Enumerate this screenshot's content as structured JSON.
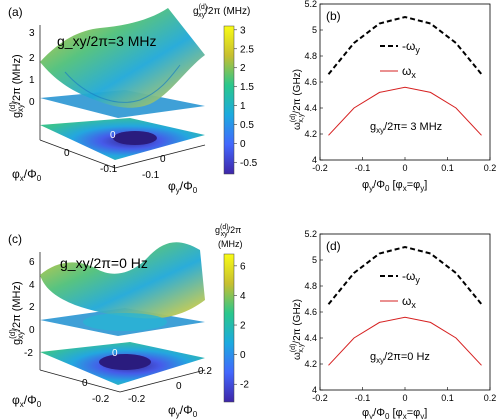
{
  "chart_data": [
    {
      "panel": "(a)",
      "type": "surface3d",
      "annotation": "g_xy/2π=3 MHz",
      "zlabel_main": "g",
      "zlabel_sup": "(d)",
      "zlabel_sub": "xy",
      "zlabel_rest": "/2π (MHz)",
      "z_ticks": [
        "3",
        "2",
        "1",
        "0"
      ],
      "x_ticks": [
        "0",
        "-0.1"
      ],
      "y_ticks": [
        "0",
        "-0.1"
      ],
      "xlabel_main": "φ",
      "xlabel_sub": "x",
      "xlabel_rest": "/Φ",
      "xlabel_sub2": "0",
      "ylabel_main": "φ",
      "ylabel_sub": "y",
      "ylabel_rest": "/Φ",
      "ylabel_sub2": "0",
      "contour_label": "0",
      "colorbar": {
        "title_main": "g",
        "title_sup": "(d)",
        "title_sub": "xy",
        "title_rest": "/2π (MHz)",
        "ticks": [
          3,
          2.5,
          2,
          1.5,
          1,
          0.5,
          0,
          -0.5
        ],
        "range": [
          -0.8,
          3.1
        ]
      }
    },
    {
      "panel": "(b)",
      "type": "line",
      "annotation": "g_xy/2π= 3 MHz",
      "ylabel_main": "ω",
      "ylabel_sup": "(d)",
      "ylabel_sub": "x,y",
      "ylabel_rest": "/2π (GHz)",
      "xlabel": "φ_y/Φ_0 [φ_x=φ_y]",
      "xlim": [
        -0.2,
        0.2
      ],
      "ylim": [
        4.0,
        5.2
      ],
      "x_ticks": [
        -0.2,
        -0.1,
        0,
        0.1,
        0.2
      ],
      "y_ticks": [
        4,
        4.2,
        4.4,
        4.6,
        4.8,
        5,
        5.2
      ],
      "series": [
        {
          "name": "-ω_y",
          "style": "dashed",
          "color": "#000000",
          "x": [
            -0.18,
            -0.12,
            -0.06,
            0,
            0.06,
            0.12,
            0.18
          ],
          "y": [
            4.66,
            4.9,
            5.05,
            5.1,
            5.05,
            4.9,
            4.66
          ]
        },
        {
          "name": "ω_x",
          "style": "solid",
          "color": "#d62020",
          "x": [
            -0.18,
            -0.12,
            -0.06,
            0,
            0.06,
            0.12,
            0.18
          ],
          "y": [
            4.19,
            4.4,
            4.52,
            4.56,
            4.52,
            4.4,
            4.19
          ]
        }
      ],
      "legend": "top-right"
    },
    {
      "panel": "(c)",
      "type": "surface3d",
      "annotation": "g_xy/2π=0 Hz",
      "zlabel_main": "g",
      "zlabel_sup": "(d)",
      "zlabel_sub": "xy",
      "zlabel_rest": "/2π (MHz)",
      "z_ticks": [
        "6",
        "4",
        "2",
        "0",
        "-2"
      ],
      "x_ticks": [
        "0",
        "-0.2"
      ],
      "y_ticks": [
        "0.2",
        "0",
        "-0.2"
      ],
      "xlabel_main": "φ",
      "xlabel_sub": "x",
      "xlabel_rest": "/Φ",
      "xlabel_sub2": "0",
      "ylabel_main": "φ",
      "ylabel_sub": "y",
      "ylabel_rest": "/Φ",
      "ylabel_sub2": "0",
      "contour_label": "0",
      "colorbar": {
        "title_main": "g",
        "title_sup": "(d)",
        "title_sub": "xy",
        "title_rest": "/2π",
        "title_line2": "(MHz)",
        "ticks": [
          6,
          4,
          2,
          0,
          -2
        ],
        "range": [
          -3.2,
          6.8
        ]
      }
    },
    {
      "panel": "(d)",
      "type": "line",
      "annotation": "g_xy/2π=0 Hz",
      "ylabel_main": "ω",
      "ylabel_sup": "(d)",
      "ylabel_sub": "x,y",
      "ylabel_rest": "/2π (GHz)",
      "xlabel": "φ_y/Φ_0 [φ_x=φ_y]",
      "xlim": [
        -0.2,
        0.2
      ],
      "ylim": [
        4.0,
        5.2
      ],
      "x_ticks": [
        -0.2,
        -0.1,
        0,
        0.1,
        0.2
      ],
      "y_ticks": [
        4,
        4.2,
        4.4,
        4.6,
        4.8,
        5,
        5.2
      ],
      "series": [
        {
          "name": "-ω_y",
          "style": "dashed",
          "color": "#000000",
          "x": [
            -0.18,
            -0.12,
            -0.06,
            0,
            0.06,
            0.12,
            0.18
          ],
          "y": [
            4.66,
            4.9,
            5.05,
            5.1,
            5.05,
            4.9,
            4.66
          ]
        },
        {
          "name": "ω_x",
          "style": "solid",
          "color": "#d62020",
          "x": [
            -0.18,
            -0.12,
            -0.06,
            0,
            0.06,
            0.12,
            0.18
          ],
          "y": [
            4.19,
            4.4,
            4.52,
            4.56,
            4.52,
            4.4,
            4.19
          ]
        }
      ],
      "legend": "top-right"
    }
  ]
}
